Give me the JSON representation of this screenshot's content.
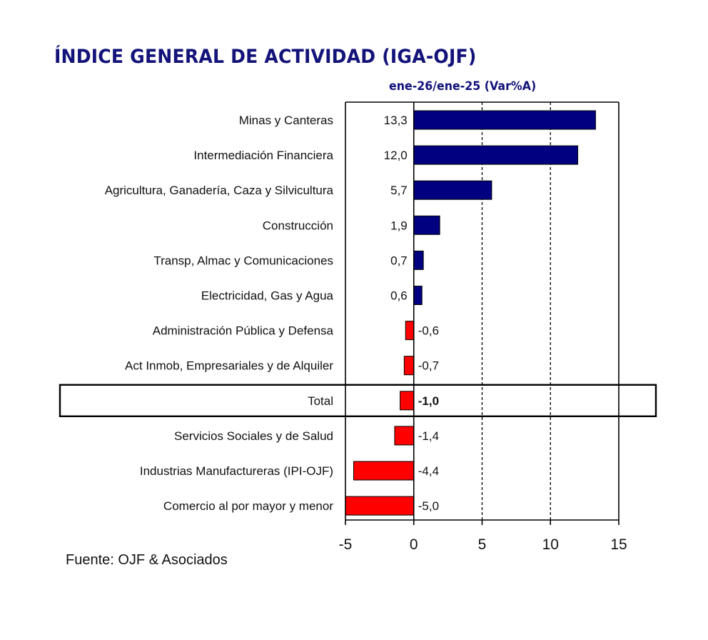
{
  "chart_data": {
    "type": "bar",
    "orientation": "horizontal",
    "title": "ÍNDICE GENERAL DE ACTIVIDAD (IGA-OJF)",
    "subtitle": "ene-26/ene-25  (Var%A)",
    "categories": [
      "Minas y Canteras",
      "Intermediación Financiera",
      "Agricultura, Ganadería, Caza y Silvicultura",
      "Construcción",
      "Transp, Almac y Comunicaciones",
      "Electricidad, Gas y Agua",
      "Administración Pública y Defensa",
      "Act Inmob, Empresariales y de Alquiler",
      "Total",
      "Servicios Sociales y de Salud",
      "Industrias Manufactureras (IPI-OJF)",
      "Comercio al por mayor y menor"
    ],
    "values": [
      13.3,
      12.0,
      5.7,
      1.9,
      0.7,
      0.6,
      -0.6,
      -0.7,
      -1.0,
      -1.4,
      -4.4,
      -5.0
    ],
    "value_labels": [
      "13,3",
      "12,0",
      "5,7",
      "1,9",
      "0,7",
      "0,6",
      "-0,6",
      "-0,7",
      "-1,0",
      "-1,4",
      "-4,4",
      "-5,0"
    ],
    "highlighted_category": "Total",
    "xlim": [
      -5,
      15
    ],
    "xticks": [
      -5,
      0,
      5,
      10,
      15
    ],
    "xtick_labels": [
      "-5",
      "0",
      "5",
      "10",
      "15"
    ],
    "gridlines": [
      5,
      10
    ],
    "grid": "dashed vertical",
    "xlabel": "",
    "ylabel": "",
    "colors": {
      "positive": "#000080",
      "negative": "#ff0000",
      "title": "#13137a"
    },
    "source": "Fuente: OJF & Asociados"
  }
}
